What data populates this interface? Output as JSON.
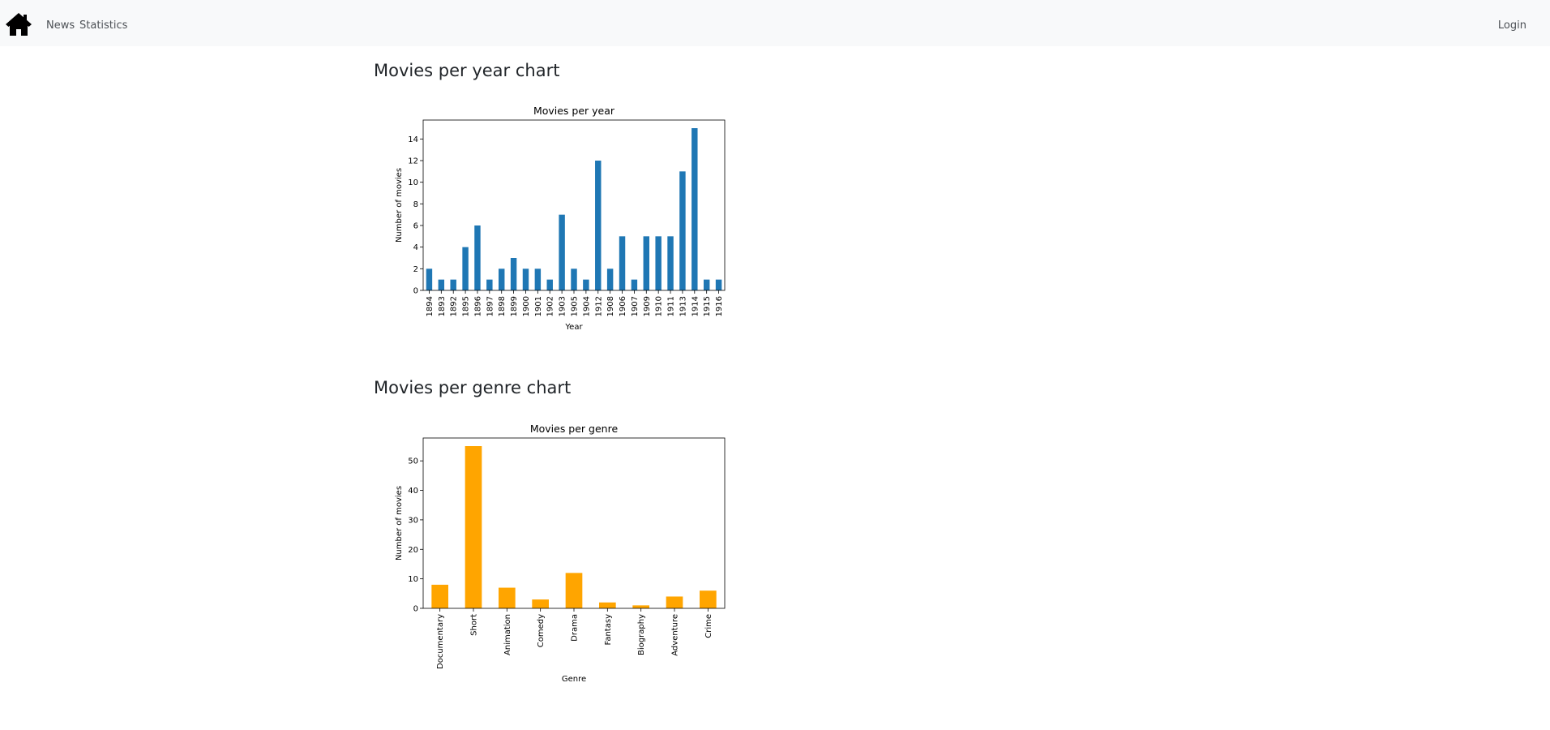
{
  "nav": {
    "home_icon": "home-icon",
    "news_label": "News",
    "statistics_label": "Statistics",
    "login_label": "Login"
  },
  "sections": {
    "year_heading": "Movies per year chart",
    "genre_heading": "Movies per genre chart"
  },
  "chart_data": [
    {
      "type": "bar",
      "title": "Movies per year",
      "xlabel": "Year",
      "ylabel": "Number of movies",
      "categories": [
        "1894",
        "1893",
        "1892",
        "1895",
        "1896",
        "1897",
        "1898",
        "1899",
        "1900",
        "1901",
        "1902",
        "1903",
        "1905",
        "1904",
        "1912",
        "1908",
        "1906",
        "1907",
        "1909",
        "1910",
        "1911",
        "1913",
        "1914",
        "1915",
        "1916"
      ],
      "values": [
        2,
        1,
        1,
        4,
        6,
        1,
        2,
        3,
        2,
        2,
        1,
        7,
        2,
        1,
        12,
        2,
        5,
        1,
        5,
        5,
        5,
        11,
        15,
        1,
        1
      ],
      "ylim": [
        0,
        15.75
      ],
      "yticks": [
        0,
        2,
        4,
        6,
        8,
        10,
        12,
        14
      ],
      "color": "#1f77b4",
      "grid": false,
      "legend": "none"
    },
    {
      "type": "bar",
      "title": "Movies per genre",
      "xlabel": "Genre",
      "ylabel": "Number of movies",
      "categories": [
        "Documentary",
        "Short",
        "Animation",
        "Comedy",
        "Drama",
        "Fantasy",
        "Biography",
        "Adventure",
        "Crime"
      ],
      "values": [
        8,
        55,
        7,
        3,
        12,
        2,
        1,
        4,
        6
      ],
      "ylim": [
        0,
        57.75
      ],
      "yticks": [
        0,
        10,
        20,
        30,
        40,
        50
      ],
      "color": "#ffa500",
      "grid": false,
      "legend": "none"
    }
  ]
}
